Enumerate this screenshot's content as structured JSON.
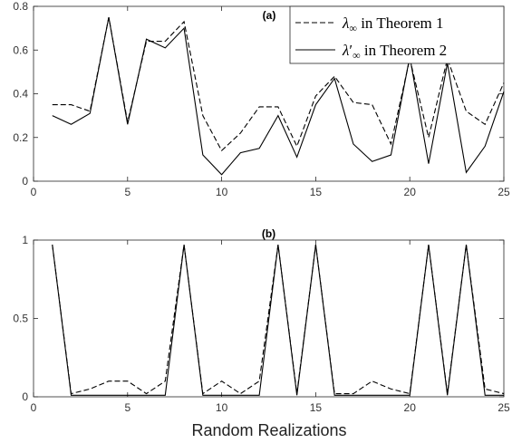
{
  "chart_data": [
    {
      "type": "line",
      "title": "(a)",
      "xlabel": "",
      "ylabel": "",
      "xlim": [
        0,
        25
      ],
      "ylim": [
        0,
        0.8
      ],
      "xticks": [
        "0",
        "5",
        "10",
        "15",
        "20",
        "25"
      ],
      "yticks": [
        "0",
        "0.2",
        "0.4",
        "0.6",
        "0.8"
      ],
      "grid": false,
      "legend": "top-right",
      "x": [
        1,
        2,
        3,
        4,
        5,
        6,
        7,
        8,
        9,
        10,
        11,
        12,
        13,
        14,
        15,
        16,
        17,
        18,
        19,
        20,
        21,
        22,
        23,
        24,
        25
      ],
      "series": [
        {
          "name": "λ∞ in Theorem 1",
          "legend_symbol": "λ",
          "legend_sub": "∞",
          "legend_prime": "",
          "legend_text": "in Theorem 1",
          "style": "dashed",
          "color": "#000000",
          "values": [
            0.35,
            0.35,
            0.32,
            0.75,
            0.27,
            0.64,
            0.64,
            0.73,
            0.3,
            0.14,
            0.22,
            0.34,
            0.34,
            0.16,
            0.39,
            0.48,
            0.36,
            0.35,
            0.17,
            0.56,
            0.2,
            0.56,
            0.32,
            0.26,
            0.45
          ]
        },
        {
          "name": "λ′∞ in Theorem 2",
          "legend_symbol": "λ",
          "legend_sub": "∞",
          "legend_prime": "′",
          "legend_text": "in Theorem 2",
          "style": "solid",
          "color": "#000000",
          "values": [
            0.3,
            0.26,
            0.31,
            0.75,
            0.26,
            0.65,
            0.61,
            0.7,
            0.12,
            0.03,
            0.13,
            0.15,
            0.3,
            0.11,
            0.35,
            0.47,
            0.17,
            0.09,
            0.12,
            0.57,
            0.08,
            0.54,
            0.04,
            0.16,
            0.41
          ]
        }
      ]
    },
    {
      "type": "line",
      "title": "(b)",
      "xlabel": "Random Realizations",
      "ylabel": "",
      "xlim": [
        0,
        25
      ],
      "ylim": [
        0,
        1
      ],
      "xticks": [
        "0",
        "5",
        "10",
        "15",
        "20",
        "25"
      ],
      "yticks": [
        "0",
        "0.5",
        "1"
      ],
      "grid": false,
      "x": [
        1,
        2,
        3,
        4,
        5,
        6,
        7,
        8,
        9,
        10,
        11,
        12,
        13,
        14,
        15,
        16,
        17,
        18,
        19,
        20,
        21,
        22,
        23,
        24,
        25
      ],
      "series": [
        {
          "style": "dashed",
          "color": "#000000",
          "values": [
            0.97,
            0.02,
            0.05,
            0.1,
            0.1,
            0.02,
            0.1,
            0.97,
            0.02,
            0.1,
            0.02,
            0.1,
            0.97,
            0.02,
            0.97,
            0.02,
            0.02,
            0.1,
            0.05,
            0.02,
            0.97,
            0.02,
            0.97,
            0.05,
            0.02
          ]
        },
        {
          "style": "solid",
          "color": "#000000",
          "values": [
            0.97,
            0.01,
            0.01,
            0.01,
            0.01,
            0.01,
            0.01,
            0.97,
            0.01,
            0.01,
            0.01,
            0.01,
            0.97,
            0.01,
            0.97,
            0.01,
            0.01,
            0.01,
            0.01,
            0.01,
            0.97,
            0.01,
            0.97,
            0.01,
            0.01
          ]
        }
      ]
    }
  ]
}
